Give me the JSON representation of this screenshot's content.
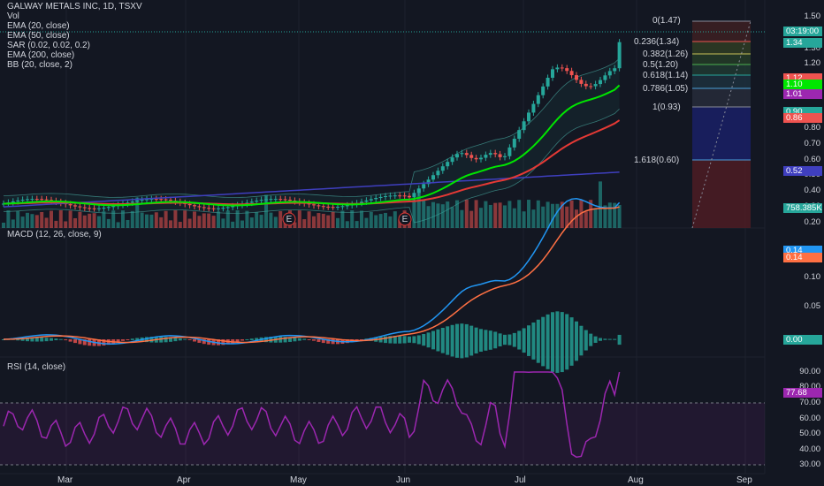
{
  "header": {
    "symbol_line": "GALWAY METALS INC, 1D, TSXV",
    "indicators": [
      "Vol",
      "EMA (20, close)",
      "EMA (50, close)",
      "SAR (0.02, 0.02, 0.2)",
      "EMA (200, close)",
      "BB (20, close, 2)"
    ]
  },
  "macd_title": "MACD (12, 26, close, 9)",
  "rsi_title": "RSI (14, close)",
  "price_axis": [
    "1.50",
    "1.40",
    "1.30",
    "1.20",
    "1.10",
    "1.00",
    "0.90",
    "0.80",
    "0.70",
    "0.60",
    "0.50",
    "0.40",
    "0.30",
    "0.20"
  ],
  "price_tags": [
    {
      "text": "03:19:00",
      "color": "#26a69a"
    },
    {
      "text": "1.34",
      "color": "#26a69a"
    },
    {
      "text": "1.12",
      "color": "#ef5350"
    },
    {
      "text": "1.10",
      "color": "#00e600"
    },
    {
      "text": "1.01",
      "color": "#9c27b0"
    },
    {
      "text": "0.90",
      "color": "#26a69a"
    },
    {
      "text": "0.86",
      "color": "#ef5350"
    },
    {
      "text": "0.52",
      "color": "#3f3fbf"
    },
    {
      "text": "758.385K",
      "color": "#26a69a"
    }
  ],
  "fib_labels": [
    {
      "text": "0(1.47)",
      "color": "#888c99"
    },
    {
      "text": "0.236(1.34)",
      "color": "#ef5350"
    },
    {
      "text": "0.382(1.26)",
      "color": "#c9c35a"
    },
    {
      "text": "0.5(1.20)",
      "color": "#4caf50"
    },
    {
      "text": "0.618(1.14)",
      "color": "#26a69a"
    },
    {
      "text": "0.786(1.05)",
      "color": "#4a9ed8"
    },
    {
      "text": "1(0.93)",
      "color": "#888c99"
    },
    {
      "text": "1.618(0.60)",
      "color": "#4a9ed8"
    }
  ],
  "macd_axis": [
    "0.10",
    "0.05"
  ],
  "macd_tags": [
    {
      "text": "0.14",
      "color": "#2196f3"
    },
    {
      "text": "0.14",
      "color": "#ff7043"
    },
    {
      "text": "0.00",
      "color": "#26a69a"
    }
  ],
  "rsi_axis": [
    "90.00",
    "80.00",
    "70.00",
    "60.00",
    "50.00",
    "40.00",
    "30.00"
  ],
  "rsi_tag": {
    "text": "77.68",
    "color": "#9c27b0"
  },
  "earnings_marker": "E",
  "x_axis": [
    "Mar",
    "Apr",
    "May",
    "Jun",
    "Jul",
    "Aug",
    "Sep"
  ],
  "colors": {
    "up": "#26a69a",
    "down": "#ef5350",
    "ema20": "#00e600",
    "ema50": "#e53935",
    "ema200": "#3f3fbf",
    "bb": "#4db6ac",
    "rsi": "#9c27b0",
    "macd": "#2196f3",
    "signal": "#ff7043"
  }
}
